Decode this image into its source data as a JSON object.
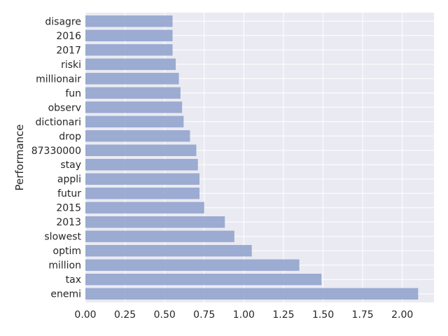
{
  "chart_data": {
    "type": "bar",
    "orientation": "horizontal",
    "categories": [
      "enemi",
      "tax",
      "million",
      "optim",
      "slowest",
      "2013",
      "2015",
      "futur",
      "appli",
      "stay",
      "87330000",
      "drop",
      "dictionari",
      "observ",
      "fun",
      "millionair",
      "riski",
      "2017",
      "2016",
      "disagre"
    ],
    "values": [
      2.1,
      1.49,
      1.35,
      1.05,
      0.94,
      0.88,
      0.75,
      0.72,
      0.72,
      0.71,
      0.7,
      0.66,
      0.62,
      0.61,
      0.6,
      0.59,
      0.57,
      0.55,
      0.55,
      0.55
    ],
    "title": "",
    "xlabel": "",
    "ylabel": "Performance",
    "xlim": [
      0,
      2.2
    ],
    "xticks": [
      "0.00",
      "0.25",
      "0.50",
      "0.75",
      "1.00",
      "1.25",
      "1.50",
      "1.75",
      "2.00"
    ],
    "grid": true,
    "colors": {
      "bar": "#8da0cb",
      "background": "#eaeaf2",
      "grid": "#ffffff"
    }
  }
}
